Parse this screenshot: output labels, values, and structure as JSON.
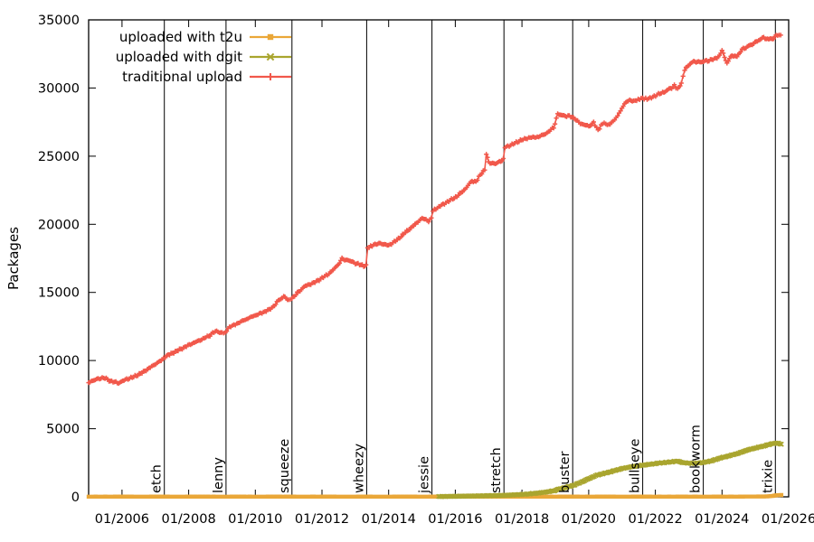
{
  "chart_data": {
    "type": "line",
    "title": "",
    "ylabel": "Packages",
    "xlim": [
      2005,
      2026
    ],
    "ylim": [
      0,
      35000
    ],
    "grid": false,
    "legend_position": "top-left-inside",
    "x_ticks": [
      {
        "year": 2006,
        "label": "01/2006"
      },
      {
        "year": 2008,
        "label": "01/2008"
      },
      {
        "year": 2010,
        "label": "01/2010"
      },
      {
        "year": 2012,
        "label": "01/2012"
      },
      {
        "year": 2014,
        "label": "01/2014"
      },
      {
        "year": 2016,
        "label": "01/2016"
      },
      {
        "year": 2018,
        "label": "01/2018"
      },
      {
        "year": 2020,
        "label": "01/2020"
      },
      {
        "year": 2022,
        "label": "01/2022"
      },
      {
        "year": 2024,
        "label": "01/2024"
      },
      {
        "year": 2026,
        "label": "01/2026"
      }
    ],
    "y_ticks": [
      {
        "value": 0,
        "label": "0"
      },
      {
        "value": 5000,
        "label": "5000"
      },
      {
        "value": 10000,
        "label": "10000"
      },
      {
        "value": 15000,
        "label": "15000"
      },
      {
        "value": 20000,
        "label": "20000"
      },
      {
        "value": 25000,
        "label": "25000"
      },
      {
        "value": 30000,
        "label": "30000"
      },
      {
        "value": 35000,
        "label": "35000"
      }
    ],
    "releases": [
      {
        "label": "etch",
        "year": 2007.27
      },
      {
        "label": "lenny",
        "year": 2009.12
      },
      {
        "label": "squeeze",
        "year": 2011.1
      },
      {
        "label": "wheezy",
        "year": 2013.34
      },
      {
        "label": "jessie",
        "year": 2015.3
      },
      {
        "label": "stretch",
        "year": 2017.46
      },
      {
        "label": "buster",
        "year": 2019.52
      },
      {
        "label": "bullseye",
        "year": 2021.62
      },
      {
        "label": "bookworm",
        "year": 2023.44
      },
      {
        "label": "trixie",
        "year": 2025.6
      }
    ],
    "series": [
      {
        "name": "uploaded with t2u",
        "color": "#eaa738",
        "marker": "square",
        "points": [
          [
            2005.0,
            15
          ],
          [
            2010.0,
            15
          ],
          [
            2015.0,
            15
          ],
          [
            2020.0,
            15
          ],
          [
            2024.5,
            15
          ],
          [
            2025.3,
            25
          ],
          [
            2025.5,
            60
          ],
          [
            2025.62,
            110
          ],
          [
            2025.78,
            130
          ]
        ]
      },
      {
        "name": "uploaded with dgit",
        "color": "#a9a52e",
        "marker": "x",
        "points": [
          [
            2015.5,
            20
          ],
          [
            2016.0,
            40
          ],
          [
            2016.5,
            60
          ],
          [
            2017.0,
            85
          ],
          [
            2017.46,
            110
          ],
          [
            2017.8,
            150
          ],
          [
            2018.1,
            190
          ],
          [
            2018.5,
            280
          ],
          [
            2018.75,
            360
          ],
          [
            2018.95,
            440
          ],
          [
            2019.1,
            560
          ],
          [
            2019.3,
            680
          ],
          [
            2019.55,
            850
          ],
          [
            2019.8,
            1100
          ],
          [
            2020.0,
            1330
          ],
          [
            2020.25,
            1590
          ],
          [
            2020.55,
            1770
          ],
          [
            2020.8,
            1940
          ],
          [
            2021.05,
            2100
          ],
          [
            2021.3,
            2210
          ],
          [
            2021.62,
            2320
          ],
          [
            2021.85,
            2390
          ],
          [
            2022.1,
            2470
          ],
          [
            2022.4,
            2540
          ],
          [
            2022.65,
            2620
          ],
          [
            2022.85,
            2500
          ],
          [
            2023.1,
            2450
          ],
          [
            2023.45,
            2520
          ],
          [
            2023.7,
            2650
          ],
          [
            2023.95,
            2850
          ],
          [
            2024.2,
            3000
          ],
          [
            2024.5,
            3200
          ],
          [
            2024.75,
            3430
          ],
          [
            2025.0,
            3580
          ],
          [
            2025.3,
            3760
          ],
          [
            2025.5,
            3900
          ],
          [
            2025.65,
            3950
          ],
          [
            2025.78,
            3860
          ]
        ]
      },
      {
        "name": "traditional upload",
        "color": "#f1584b",
        "marker": "plus",
        "points": [
          [
            2005.0,
            8400
          ],
          [
            2005.2,
            8600
          ],
          [
            2005.45,
            8750
          ],
          [
            2005.65,
            8500
          ],
          [
            2005.9,
            8350
          ],
          [
            2006.1,
            8600
          ],
          [
            2006.35,
            8800
          ],
          [
            2006.6,
            9100
          ],
          [
            2006.85,
            9500
          ],
          [
            2007.1,
            9900
          ],
          [
            2007.25,
            10150
          ],
          [
            2007.3,
            10300
          ],
          [
            2007.6,
            10650
          ],
          [
            2007.85,
            10950
          ],
          [
            2008.1,
            11250
          ],
          [
            2008.35,
            11500
          ],
          [
            2008.6,
            11800
          ],
          [
            2008.8,
            12150
          ],
          [
            2009.0,
            12050
          ],
          [
            2009.1,
            12000
          ],
          [
            2009.18,
            12400
          ],
          [
            2009.4,
            12650
          ],
          [
            2009.65,
            12950
          ],
          [
            2009.95,
            13270
          ],
          [
            2010.2,
            13500
          ],
          [
            2010.5,
            13850
          ],
          [
            2010.65,
            14300
          ],
          [
            2010.85,
            14700
          ],
          [
            2011.0,
            14450
          ],
          [
            2011.1,
            14550
          ],
          [
            2011.3,
            15050
          ],
          [
            2011.5,
            15480
          ],
          [
            2011.75,
            15700
          ],
          [
            2012.0,
            16050
          ],
          [
            2012.25,
            16450
          ],
          [
            2012.45,
            16950
          ],
          [
            2012.6,
            17450
          ],
          [
            2012.8,
            17350
          ],
          [
            2013.0,
            17150
          ],
          [
            2013.25,
            16950
          ],
          [
            2013.32,
            17050
          ],
          [
            2013.37,
            18250
          ],
          [
            2013.55,
            18500
          ],
          [
            2013.75,
            18600
          ],
          [
            2014.0,
            18450
          ],
          [
            2014.25,
            18850
          ],
          [
            2014.5,
            19400
          ],
          [
            2014.75,
            19900
          ],
          [
            2015.0,
            20450
          ],
          [
            2015.2,
            20250
          ],
          [
            2015.28,
            20400
          ],
          [
            2015.33,
            21000
          ],
          [
            2015.55,
            21350
          ],
          [
            2015.8,
            21700
          ],
          [
            2016.05,
            22050
          ],
          [
            2016.3,
            22600
          ],
          [
            2016.5,
            23200
          ],
          [
            2016.62,
            23100
          ],
          [
            2016.75,
            23650
          ],
          [
            2016.88,
            24000
          ],
          [
            2016.93,
            25100
          ],
          [
            2017.0,
            24550
          ],
          [
            2017.2,
            24430
          ],
          [
            2017.44,
            24760
          ],
          [
            2017.49,
            25650
          ],
          [
            2017.7,
            25850
          ],
          [
            2017.95,
            26150
          ],
          [
            2018.2,
            26350
          ],
          [
            2018.5,
            26420
          ],
          [
            2018.75,
            26700
          ],
          [
            2018.95,
            27100
          ],
          [
            2019.07,
            28080
          ],
          [
            2019.3,
            27950
          ],
          [
            2019.5,
            27900
          ],
          [
            2019.75,
            27400
          ],
          [
            2020.0,
            27200
          ],
          [
            2020.15,
            27450
          ],
          [
            2020.28,
            26900
          ],
          [
            2020.42,
            27420
          ],
          [
            2020.6,
            27300
          ],
          [
            2020.78,
            27650
          ],
          [
            2021.0,
            28500
          ],
          [
            2021.15,
            29080
          ],
          [
            2021.35,
            29050
          ],
          [
            2021.62,
            29250
          ],
          [
            2021.8,
            29200
          ],
          [
            2022.05,
            29500
          ],
          [
            2022.3,
            29750
          ],
          [
            2022.45,
            29960
          ],
          [
            2022.57,
            30180
          ],
          [
            2022.67,
            29900
          ],
          [
            2022.78,
            30400
          ],
          [
            2022.88,
            31300
          ],
          [
            2023.0,
            31700
          ],
          [
            2023.15,
            31950
          ],
          [
            2023.3,
            31900
          ],
          [
            2023.45,
            31950
          ],
          [
            2023.65,
            32050
          ],
          [
            2023.85,
            32200
          ],
          [
            2024.0,
            32700
          ],
          [
            2024.15,
            31850
          ],
          [
            2024.3,
            32400
          ],
          [
            2024.45,
            32300
          ],
          [
            2024.6,
            32830
          ],
          [
            2024.8,
            33080
          ],
          [
            2024.95,
            33280
          ],
          [
            2025.1,
            33500
          ],
          [
            2025.25,
            33715
          ],
          [
            2025.4,
            33550
          ],
          [
            2025.55,
            33680
          ],
          [
            2025.62,
            33850
          ],
          [
            2025.76,
            33880
          ]
        ]
      }
    ],
    "colors": {
      "axis": "#000000",
      "background": "#ffffff",
      "t2u": "#eaa738",
      "dgit": "#a9a52e",
      "traditional": "#f1584b"
    }
  }
}
